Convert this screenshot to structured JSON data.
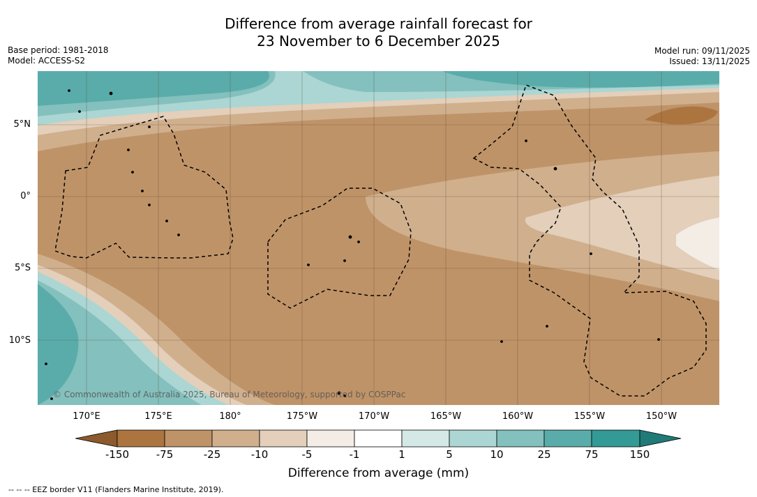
{
  "header": {
    "title_line1": "Difference from average rainfall forecast for",
    "title_line2": "23 November to 6 December 2025",
    "base_period": "Base period: 1981-2018",
    "model": "Model: ACCESS-S2",
    "model_run": "Model run: 09/11/2025",
    "issued": "Issued: 13/11/2025"
  },
  "map": {
    "copyright": "© Commonwealth of Australia 2025, Bureau of Meteorology, supported by COSPPac",
    "lat_labels": [
      "5°N",
      "0°",
      "5°S",
      "10°S"
    ],
    "lon_labels": [
      "170°E",
      "175°E",
      "180°",
      "175°W",
      "170°W",
      "165°W",
      "160°W",
      "155°W",
      "150°W"
    ]
  },
  "colorbar": {
    "tick_labels": [
      "-150",
      "-75",
      "-25",
      "-10",
      "-5",
      "-1",
      "1",
      "5",
      "10",
      "25",
      "75",
      "150"
    ],
    "colors": [
      "#8c5a2c",
      "#ac7540",
      "#bf9368",
      "#d0af8d",
      "#e3cfba",
      "#f3ede6",
      "#ffffff",
      "#d4e9e6",
      "#abd6d3",
      "#84c0bd",
      "#5aacaa",
      "#349a96",
      "#1f7a78"
    ],
    "label": "Difference from average (mm)"
  },
  "legend_note": "--  --  -- EEZ border V11 (Flanders Marine Institute, 2019)."
}
